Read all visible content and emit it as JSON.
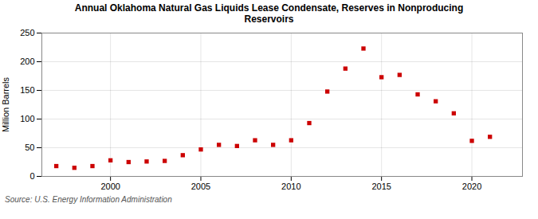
{
  "chart_data": {
    "type": "scatter",
    "title": "Annual Oklahoma Natural Gas Liquids Lease Condensate, Reserves in Nonproducing\nReservoirs",
    "ylabel": "Million Barrels",
    "annotation": "Source: U.S. Energy Information Administration",
    "x": [
      1997,
      1998,
      1999,
      2000,
      2001,
      2002,
      2003,
      2004,
      2005,
      2006,
      2007,
      2008,
      2009,
      2010,
      2011,
      2012,
      2013,
      2014,
      2015,
      2016,
      2017,
      2018,
      2019,
      2020,
      2021
    ],
    "values": [
      18,
      15,
      18,
      28,
      25,
      26,
      27,
      37,
      47,
      55,
      53,
      63,
      55,
      63,
      93,
      148,
      188,
      223,
      173,
      177,
      143,
      131,
      110,
      62,
      69
    ],
    "color": "#cc0000",
    "marker": "square",
    "xlim": [
      1996.2,
      2022.8
    ],
    "xticks": [
      2000,
      2005,
      2010,
      2015,
      2020
    ],
    "ylim": [
      0,
      250
    ],
    "yticks": [
      0,
      50,
      100,
      150,
      200,
      250
    ],
    "grid": true
  }
}
